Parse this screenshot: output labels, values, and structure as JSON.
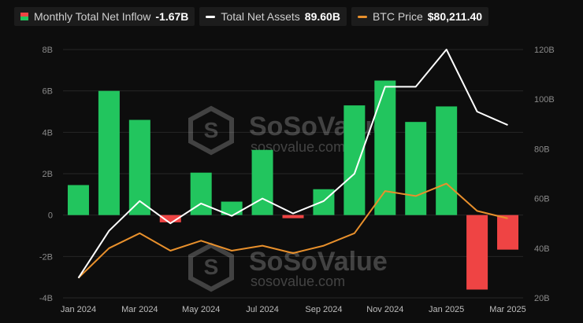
{
  "legend": {
    "inflow": {
      "label": "Monthly Total Net Inflow",
      "value": "-1.67B"
    },
    "assets": {
      "label": "Total Net Assets",
      "value": "89.60B"
    },
    "btc": {
      "label": "BTC Price",
      "value": "$80,211.40"
    }
  },
  "watermark": {
    "brand": "SoSoValue",
    "url": "sosovalue.com"
  },
  "colors": {
    "positive": "#22c55e",
    "negative": "#ef4444",
    "assets_line": "#ffffff",
    "btc_line": "#e8902c",
    "background": "#0d0d0d"
  },
  "chart_data": {
    "type": "bar",
    "categories": [
      "Jan 2024",
      "Feb 2024",
      "Mar 2024",
      "Apr 2024",
      "May 2024",
      "Jun 2024",
      "Jul 2024",
      "Aug 2024",
      "Sep 2024",
      "Oct 2024",
      "Nov 2024",
      "Dec 2024",
      "Jan 2025",
      "Feb 2025",
      "Mar 2025"
    ],
    "x_tick_labels": [
      "Jan 2024",
      "Mar 2024",
      "May 2024",
      "Jul 2024",
      "Sep 2024",
      "Nov 2024",
      "Jan 2025",
      "Mar 2025"
    ],
    "series": [
      {
        "name": "Monthly Total Net Inflow",
        "type": "bar",
        "axis": "left",
        "unit": "B",
        "values": [
          1.45,
          6.0,
          4.6,
          -0.35,
          2.05,
          0.65,
          3.15,
          -0.15,
          1.25,
          5.3,
          6.5,
          4.5,
          5.25,
          -3.6,
          -1.67
        ]
      },
      {
        "name": "Total Net Assets",
        "type": "line",
        "axis": "right",
        "unit": "B",
        "values": [
          28,
          47,
          59,
          50,
          58,
          53,
          60,
          54,
          59,
          70,
          105,
          105,
          120,
          95,
          89.6
        ]
      },
      {
        "name": "BTC Price",
        "type": "line",
        "axis": "right",
        "values": [
          28,
          40,
          46,
          39,
          43,
          39,
          41,
          38,
          41,
          46,
          63,
          61,
          66,
          55,
          52
        ]
      }
    ],
    "left_axis": {
      "ticks": [
        "8B",
        "6B",
        "4B",
        "2B",
        "0",
        "-2B",
        "-4B"
      ],
      "range": [
        -4,
        8
      ]
    },
    "right_axis": {
      "ticks": [
        "120B",
        "100B",
        "80B",
        "60B",
        "40B",
        "20B"
      ],
      "range": [
        20,
        120
      ]
    }
  }
}
